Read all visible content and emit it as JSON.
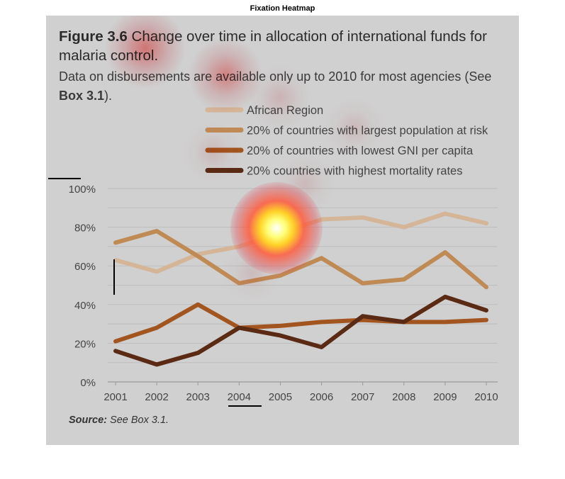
{
  "window_title": "Fixation Heatmap",
  "figure": {
    "number": "Figure 3.6",
    "title": "Change over time in allocation of international funds for malaria control.",
    "subtitle_main": "Data on disbursements are available only up to 2010 for most agencies (See ",
    "subtitle_box": "Box 3.1",
    "subtitle_end": ").",
    "source_label": "Source:",
    "source_text": "See Box 3.1."
  },
  "chart_data": {
    "type": "line",
    "x": [
      "2001",
      "2002",
      "2003",
      "2004",
      "2005",
      "2006",
      "2007",
      "2008",
      "2009",
      "2010"
    ],
    "ylim": [
      0,
      100
    ],
    "yticks": [
      "0%",
      "20%",
      "40%",
      "60%",
      "80%",
      "100%"
    ],
    "grid": true,
    "legend_position": "top-right",
    "series": [
      {
        "name": "African Region",
        "color": "#d4b598",
        "values": [
          63,
          57,
          66,
          70,
          77,
          84,
          85,
          80,
          87,
          82
        ]
      },
      {
        "name": "20% of countries with largest population at risk",
        "color": "#c08a55",
        "values": [
          72,
          78,
          65,
          51,
          55,
          64,
          51,
          53,
          67,
          49
        ]
      },
      {
        "name": "20% of countries with lowest GNI per capita",
        "color": "#a3551f",
        "values": [
          21,
          28,
          40,
          28,
          29,
          31,
          32,
          31,
          31,
          32
        ]
      },
      {
        "name": "20% countries with highest mortality rates",
        "color": "#5a2a14",
        "values": [
          16,
          9,
          15,
          28,
          24,
          18,
          34,
          31,
          44,
          37
        ]
      }
    ]
  },
  "heatmap": {
    "fixations": [
      {
        "x": 390,
        "y": 322,
        "intensity": 1.0
      },
      {
        "x": 205,
        "y": 68,
        "intensity": 0.75
      },
      {
        "x": 318,
        "y": 106,
        "intensity": 0.6
      },
      {
        "x": 395,
        "y": 138,
        "intensity": 0.35
      },
      {
        "x": 500,
        "y": 180,
        "intensity": 0.25
      },
      {
        "x": 300,
        "y": 215,
        "intensity": 0.25
      },
      {
        "x": 430,
        "y": 260,
        "intensity": 0.25
      },
      {
        "x": 355,
        "y": 385,
        "intensity": 0.2
      }
    ]
  }
}
